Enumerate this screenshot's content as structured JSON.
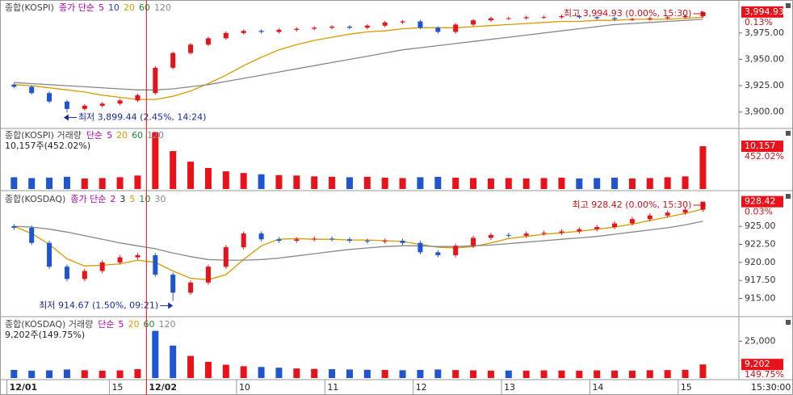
{
  "chart_data": [
    {
      "type": "candlestick",
      "title": "종합(KOSPI)",
      "indicator": "종가 단순",
      "legend": [
        {
          "name": "5",
          "color": "#c000c0"
        },
        {
          "name": "10",
          "color": "#1e3cc8"
        },
        {
          "name": "20",
          "color": "#d89a00"
        },
        {
          "name": "60",
          "color": "#1a8a3a"
        },
        {
          "name": "120",
          "color": "#888888"
        }
      ],
      "up_color": "#e8121a",
      "down_color": "#1f55d0",
      "open": [
        3926,
        3924,
        3918,
        3910,
        3903,
        3906,
        3908,
        3911,
        3918,
        3942,
        3956,
        3964,
        3970,
        3975,
        3977,
        3976,
        3978,
        3979,
        3980,
        3981,
        3980,
        3982,
        3985,
        3986,
        3980,
        3976,
        3983,
        3987,
        3989,
        3989,
        3990,
        3990,
        3991,
        3990,
        3989,
        3988,
        3988,
        3989,
        3990,
        3991
      ],
      "high": [
        3927.5,
        3925.5,
        3919.5,
        3911.5,
        3907.5,
        3909.5,
        3912.5,
        3917.5,
        3943.5,
        3957.5,
        3965.5,
        3971.5,
        3976.5,
        3978.5,
        3978.5,
        3979.5,
        3980.5,
        3981.5,
        3982.5,
        3982.5,
        3983.5,
        3986.5,
        3987.5,
        3987.5,
        3981.5,
        3984.5,
        3988.5,
        3990.5,
        3990.5,
        3991.5,
        3991.5,
        3992.5,
        3992.5,
        3991.5,
        3990.5,
        3989.5,
        3990.5,
        3991.5,
        3992.5,
        3994.93
      ],
      "low": [
        3922.5,
        3916.5,
        3908.5,
        3899.44,
        3901.5,
        3904.5,
        3906.5,
        3909.5,
        3916.5,
        3940.5,
        3954.5,
        3962.5,
        3968.5,
        3973.5,
        3974.5,
        3974.5,
        3976.5,
        3977.5,
        3978.5,
        3978.5,
        3978.5,
        3980.5,
        3983.5,
        3978.5,
        3974.5,
        3974.5,
        3981.5,
        3985.5,
        3987.5,
        3987.5,
        3988.5,
        3988.5,
        3988.5,
        3987.5,
        3986.5,
        3986.5,
        3986.5,
        3987.5,
        3988.5,
        3989.5
      ],
      "close": [
        3924,
        3918,
        3910,
        3903,
        3906,
        3908,
        3911,
        3916,
        3942,
        3956,
        3964,
        3970,
        3975,
        3977,
        3976,
        3978,
        3979,
        3980,
        3981,
        3980,
        3982,
        3985,
        3986,
        3980,
        3976,
        3983,
        3987,
        3989,
        3989,
        3990,
        3990,
        3991,
        3990,
        3989,
        3988,
        3988,
        3989,
        3990,
        3991,
        3994.93
      ],
      "lines": [
        {
          "color": "#d89a00",
          "values": [
            3926,
            3925,
            3923,
            3921,
            3919,
            3916,
            3914,
            3912,
            3912,
            3915,
            3920,
            3927,
            3935,
            3944,
            3952,
            3959,
            3964,
            3968,
            3971,
            3974,
            3976,
            3977,
            3979,
            3980,
            3980,
            3980,
            3981,
            3982,
            3983,
            3984,
            3985,
            3986,
            3986,
            3987,
            3987,
            3988,
            3988,
            3988,
            3989,
            3990
          ]
        },
        {
          "color": "#888888",
          "values": [
            3928,
            3927,
            3926,
            3925,
            3924,
            3923,
            3922,
            3921,
            3921,
            3922,
            3924,
            3926,
            3929,
            3932,
            3935,
            3938,
            3941,
            3944,
            3947,
            3950,
            3953,
            3956,
            3959,
            3961,
            3963,
            3965,
            3967,
            3969,
            3971,
            3973,
            3975,
            3977,
            3979,
            3981,
            3983,
            3984,
            3985,
            3986,
            3987,
            3988
          ]
        }
      ],
      "xlim": [
        -0.7,
        40.9
      ],
      "ylim": [
        3886,
        4004
      ],
      "yticks": [
        {
          "value": 3900,
          "label": "3,900.00"
        },
        {
          "value": 3925,
          "label": "3,925.00"
        },
        {
          "value": 3950,
          "label": "3,950.00"
        },
        {
          "value": 3975,
          "label": "3,975.00"
        }
      ],
      "high_label": "최고 3,994.93 (0.00%, 15:30)",
      "low_label": "최저 3,899.44 (2.45%, 14:24)",
      "last_label": "3,994.93",
      "change_label": "0.13%"
    },
    {
      "type": "volume",
      "title": "종합(KOSPI) 거래량",
      "indicator": "단순",
      "legend": [
        {
          "name": "5",
          "color": "#c000c0"
        },
        {
          "name": "20",
          "color": "#d89a00"
        },
        {
          "name": "60",
          "color": "#1a8a3a"
        },
        {
          "name": "120",
          "color": "#888888"
        }
      ],
      "summary": "10,157주(452.02%)",
      "values": [
        2800,
        2600,
        2700,
        2900,
        2500,
        2600,
        2800,
        3200,
        13500,
        9000,
        6500,
        5000,
        4200,
        3800,
        3500,
        3300,
        3200,
        3000,
        2900,
        2800,
        2900,
        2700,
        2600,
        2800,
        2900,
        2700,
        2600,
        2500,
        2600,
        2500,
        2600,
        2700,
        2500,
        2600,
        2700,
        2500,
        2600,
        2800,
        3000,
        10157
      ],
      "xlim": [
        -0.7,
        40.9
      ],
      "ylim": [
        0,
        14000
      ],
      "last_label": "10,157",
      "change_label": "452.02%"
    },
    {
      "type": "candlestick",
      "title": "종합(KOSDAQ)",
      "indicator": "종가 단순",
      "legend": [
        {
          "name": "2",
          "color": "#c000c0"
        },
        {
          "name": "3",
          "color": "#222222"
        },
        {
          "name": "5",
          "color": "#d89a00"
        },
        {
          "name": "10",
          "color": "#1a8a3a"
        },
        {
          "name": "30",
          "color": "#888888"
        }
      ],
      "up_color": "#e8121a",
      "down_color": "#1f55d0",
      "open": [
        925.0,
        924.8,
        922.7,
        919.4,
        917.7,
        918.8,
        920.0,
        920.7,
        921.0,
        918.3,
        915.8,
        917.2,
        919.4,
        922.1,
        924.0,
        923.2,
        923.0,
        923.2,
        923.3,
        923.2,
        923.0,
        922.9,
        923.0,
        922.7,
        921.4,
        921.0,
        922.3,
        923.4,
        923.8,
        923.7,
        924.0,
        924.1,
        924.3,
        924.6,
        924.9,
        925.4,
        926.0,
        926.5,
        926.9,
        927.3
      ],
      "high": [
        925.3,
        925.1,
        923.0,
        919.7,
        919.1,
        920.3,
        921.0,
        921.3,
        921.3,
        918.6,
        917.5,
        919.7,
        922.4,
        924.3,
        924.3,
        923.5,
        923.5,
        923.6,
        923.6,
        923.5,
        923.3,
        923.3,
        923.3,
        923.0,
        921.7,
        922.6,
        923.7,
        924.1,
        924.1,
        924.3,
        924.4,
        924.6,
        924.9,
        925.2,
        925.7,
        926.3,
        926.8,
        927.2,
        927.6,
        928.42
      ],
      "low": [
        924.5,
        922.4,
        919.1,
        917.4,
        917.4,
        918.5,
        919.7,
        920.4,
        918.0,
        914.67,
        915.5,
        916.9,
        919.1,
        921.8,
        922.9,
        922.7,
        922.7,
        922.9,
        922.9,
        922.7,
        922.6,
        922.6,
        922.4,
        921.1,
        920.7,
        920.7,
        922.0,
        923.1,
        923.4,
        923.4,
        923.7,
        923.8,
        924.0,
        924.3,
        924.6,
        925.1,
        925.7,
        926.2,
        926.6,
        927.0
      ],
      "close": [
        924.8,
        922.7,
        919.4,
        917.7,
        918.8,
        920.0,
        920.7,
        921.0,
        918.3,
        915.8,
        917.2,
        919.4,
        922.1,
        924.0,
        923.2,
        923.0,
        923.2,
        923.3,
        923.2,
        923.0,
        922.9,
        923.0,
        922.7,
        921.4,
        921.0,
        922.3,
        923.4,
        923.8,
        923.7,
        924.0,
        924.1,
        924.3,
        924.6,
        924.9,
        925.4,
        926.0,
        926.5,
        926.9,
        927.3,
        928.42
      ],
      "lines": [
        {
          "color": "#d89a00",
          "values": [
            925,
            924,
            922.5,
            920.5,
            919.5,
            919.6,
            919.8,
            920.3,
            920.0,
            918.8,
            917.8,
            917.6,
            918.3,
            920.4,
            922.3,
            923.2,
            923.3,
            923.2,
            923.2,
            923.1,
            923.1,
            923.0,
            922.9,
            922.5,
            922.1,
            922.0,
            922.2,
            922.7,
            923.3,
            923.6,
            923.9,
            924.1,
            924.3,
            924.6,
            924.9,
            925.3,
            925.8,
            926.3,
            926.8,
            927.4
          ]
        },
        {
          "color": "#888888",
          "values": [
            925,
            924.9,
            924.6,
            924.2,
            923.7,
            923.2,
            922.7,
            922.3,
            921.9,
            921.3,
            920.8,
            920.4,
            920.3,
            920.3,
            920.4,
            920.6,
            920.9,
            921.2,
            921.5,
            921.8,
            922.0,
            922.2,
            922.3,
            922.3,
            922.2,
            922.2,
            922.3,
            922.4,
            922.6,
            922.8,
            923.0,
            923.2,
            923.4,
            923.6,
            923.9,
            924.2,
            924.5,
            924.8,
            925.2,
            925.7
          ]
        }
      ],
      "xlim": [
        -0.7,
        40.9
      ],
      "ylim": [
        912.7,
        929.5
      ],
      "yticks": [
        {
          "value": 915,
          "label": "915.00"
        },
        {
          "value": 917.5,
          "label": "917.50"
        },
        {
          "value": 920,
          "label": "920.00"
        },
        {
          "value": 922.5,
          "label": "922.50"
        },
        {
          "value": 925,
          "label": "925.00"
        }
      ],
      "high_label": "최고 928.42 (0.00%, 15:30)",
      "low_label": "최저 914.67 (1.50%, 09:21)",
      "last_label": "928.42",
      "change_label": "0.03%"
    },
    {
      "type": "volume",
      "title": "종합(KOSDAQ) 거래량",
      "indicator": "단순",
      "legend": [
        {
          "name": "5",
          "color": "#c000c0"
        },
        {
          "name": "20",
          "color": "#d89a00"
        },
        {
          "name": "60",
          "color": "#1a8a3a"
        },
        {
          "name": "120",
          "color": "#888888"
        }
      ],
      "summary": "9,202주(149.75%)",
      "values": [
        5500,
        5000,
        5200,
        5800,
        5300,
        5000,
        5200,
        6000,
        32000,
        22000,
        15000,
        11000,
        9000,
        8000,
        7500,
        7000,
        6500,
        6200,
        6000,
        5800,
        5600,
        5500,
        5300,
        5500,
        5800,
        5400,
        5200,
        5000,
        5100,
        5000,
        5200,
        5100,
        5000,
        5200,
        5100,
        5000,
        5300,
        5400,
        5600,
        9202
      ],
      "xlim": [
        -0.7,
        40.9
      ],
      "ylim": [
        0,
        40000
      ],
      "yticks": [
        {
          "value": 25000,
          "label": "25,000"
        }
      ],
      "last_label": "9,202",
      "change_label": "149.75%",
      "xticks": [
        {
          "value": -0.4,
          "label": "12/01"
        },
        {
          "value": 5.4,
          "label": "15"
        },
        {
          "value": 7.5,
          "label": "12/02"
        },
        {
          "value": 12.6,
          "label": "10"
        },
        {
          "value": 17.6,
          "label": "11"
        },
        {
          "value": 22.6,
          "label": "12"
        },
        {
          "value": 27.6,
          "label": "13"
        },
        {
          "value": 32.6,
          "label": "14"
        },
        {
          "value": 37.6,
          "label": "15"
        }
      ],
      "x_end_label": "15:30:00"
    }
  ]
}
